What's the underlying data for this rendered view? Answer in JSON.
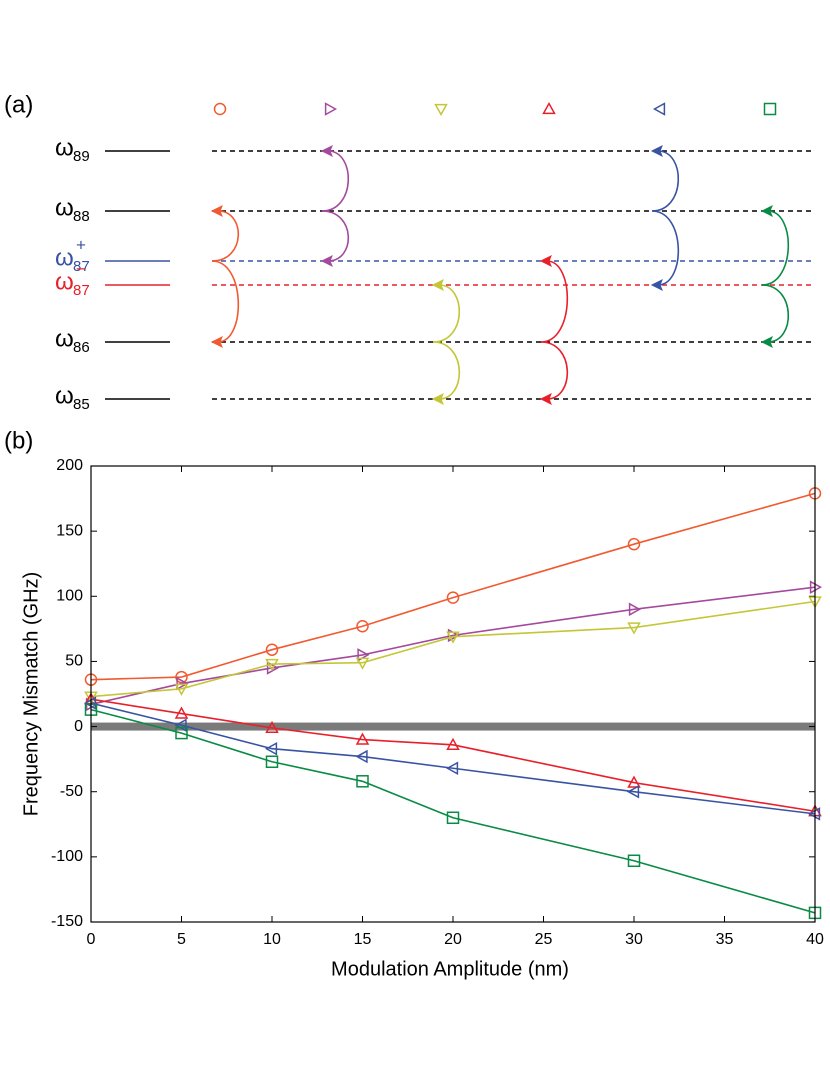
{
  "panel_labels": [
    "(a)",
    "(b)"
  ],
  "diagram": {
    "levels": [
      {
        "base": "ω",
        "sub": "89",
        "color": "#000000"
      },
      {
        "base": "ω",
        "sub": "88",
        "color": "#000000"
      },
      {
        "base": "ω",
        "sub": "87",
        "sup": "+",
        "color": "#3953a4"
      },
      {
        "base": "ω",
        "sub": "87",
        "sup": "−",
        "color": "#e8202a"
      },
      {
        "base": "ω",
        "sub": "86",
        "color": "#000000"
      },
      {
        "base": "ω",
        "sub": "85",
        "color": "#000000"
      }
    ]
  },
  "chart_data": {
    "type": "line",
    "x_label": "Modulation Amplitude (nm)",
    "y_label": "Frequency Mismatch (GHz)",
    "x": [
      0,
      5,
      10,
      15,
      20,
      30,
      40
    ],
    "xlim": [
      0,
      40
    ],
    "xticks": [
      0,
      5,
      10,
      15,
      20,
      25,
      30,
      35,
      40
    ],
    "ylim": [
      -150,
      200
    ],
    "yticks": [
      -150,
      -100,
      -50,
      0,
      50,
      100,
      150,
      200
    ],
    "hline": 0,
    "hline_color": "#7a7a7a",
    "series": [
      {
        "color": "#f15a30",
        "marker": "circle",
        "values": [
          36,
          38,
          59,
          77,
          99,
          140,
          179
        ]
      },
      {
        "color": "#a44a9e",
        "marker": "triangle-right",
        "values": [
          17,
          33,
          45,
          55,
          70,
          90,
          107
        ]
      },
      {
        "color": "#c4c637",
        "marker": "triangle-down",
        "values": [
          23,
          29,
          48,
          49,
          69,
          76,
          96
        ]
      },
      {
        "color": "#e8202a",
        "marker": "triangle-up",
        "values": [
          21,
          10,
          -1,
          -10,
          -14,
          -43,
          -65
        ]
      },
      {
        "color": "#3953a4",
        "marker": "triangle-left",
        "values": [
          18,
          1,
          -17,
          -23,
          -32,
          -50,
          -67
        ]
      },
      {
        "color": "#0a8b45",
        "marker": "square",
        "values": [
          13,
          -5,
          -27,
          -42,
          -70,
          -103,
          -143
        ]
      }
    ]
  }
}
